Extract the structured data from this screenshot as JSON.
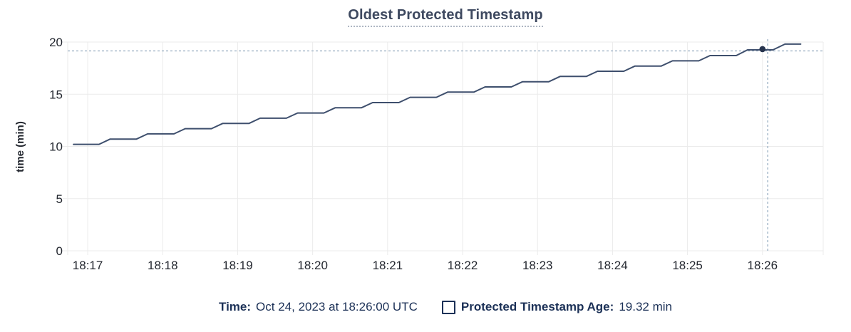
{
  "header": {
    "title": "Oldest Protected Timestamp"
  },
  "legend": {
    "time_label": "Time:",
    "time_value": "Oct 24, 2023 at 18:26:00 UTC",
    "series_label": "Protected Timestamp Age:",
    "series_value": "19.32 min"
  },
  "icons": {
    "series_checkbox": "empty-square-outline"
  },
  "colors": {
    "series_line": "#3e4f6d",
    "point_dot": "#26334d",
    "crosshair": "#9fb3c6",
    "grid": "#ebebeb",
    "tick_text": "#23272f",
    "axis_label_text": "#23272f",
    "title_text": "#3e4960",
    "legend_text": "#1c3157"
  },
  "chart_data": {
    "type": "line",
    "title": "Oldest Protected Timestamp",
    "xlabel": "",
    "ylabel": "time (min)",
    "grid": true,
    "legend_position": "bottom",
    "x_tick_labels": [
      "18:17",
      "18:18",
      "18:19",
      "18:20",
      "18:21",
      "18:22",
      "18:23",
      "18:24",
      "18:25",
      "18:26"
    ],
    "x_tick_minutes": [
      0,
      1,
      2,
      3,
      4,
      5,
      6,
      7,
      8,
      9
    ],
    "x_range_minutes": [
      -0.267,
      9.81
    ],
    "ylim": [
      0,
      20
    ],
    "y_ticks": [
      0,
      5,
      10,
      15,
      20
    ],
    "series": [
      {
        "name": "Protected Timestamp Age",
        "unit": "min",
        "points": [
          [
            -0.19,
            10.2
          ],
          [
            0.15,
            10.2
          ],
          [
            0.3,
            10.7
          ],
          [
            0.65,
            10.7
          ],
          [
            0.8,
            11.2
          ],
          [
            1.15,
            11.2
          ],
          [
            1.3,
            11.7
          ],
          [
            1.65,
            11.7
          ],
          [
            1.8,
            12.2
          ],
          [
            2.15,
            12.2
          ],
          [
            2.3,
            12.7
          ],
          [
            2.65,
            12.7
          ],
          [
            2.8,
            13.2
          ],
          [
            3.15,
            13.2
          ],
          [
            3.3,
            13.7
          ],
          [
            3.65,
            13.7
          ],
          [
            3.8,
            14.2
          ],
          [
            4.15,
            14.2
          ],
          [
            4.3,
            14.7
          ],
          [
            4.65,
            14.7
          ],
          [
            4.8,
            15.2
          ],
          [
            5.15,
            15.2
          ],
          [
            5.3,
            15.7
          ],
          [
            5.65,
            15.7
          ],
          [
            5.8,
            16.2
          ],
          [
            6.15,
            16.2
          ],
          [
            6.3,
            16.7
          ],
          [
            6.65,
            16.7
          ],
          [
            6.8,
            17.2
          ],
          [
            7.15,
            17.2
          ],
          [
            7.3,
            17.7
          ],
          [
            7.65,
            17.7
          ],
          [
            7.8,
            18.2
          ],
          [
            8.15,
            18.2
          ],
          [
            8.3,
            18.7
          ],
          [
            8.65,
            18.7
          ],
          [
            8.8,
            19.25
          ],
          [
            9.14,
            19.25
          ],
          [
            9.3,
            19.8
          ],
          [
            9.51,
            19.8
          ]
        ]
      }
    ],
    "cursor": {
      "hover_time_label": "Oct 24, 2023 at 18:26:00 UTC",
      "crosshair_x_min": 9.07,
      "crosshair_y_value": 19.15,
      "snapped_point": [
        9.0,
        19.32
      ],
      "snapped_value_label": "19.32 min"
    }
  }
}
